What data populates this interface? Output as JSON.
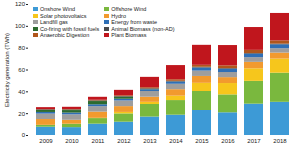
{
  "chart_data": {
    "type": "bar",
    "stacked": true,
    "legend": "upper left",
    "grid": false,
    "y_label": "Electricity generation (TWh)",
    "categories": [
      "2009",
      "2010",
      "2011",
      "2012",
      "2013",
      "2014",
      "2015",
      "2016",
      "2017",
      "2018"
    ],
    "ylim": [
      0,
      120
    ],
    "yticks": [
      0,
      20,
      40,
      60,
      80,
      100,
      120
    ],
    "series": [
      {
        "name": "Onshore Wind",
        "color": "#3d9ad6",
        "values": [
          7.6,
          7.2,
          10.4,
          12.2,
          16.9,
          18.6,
          22.9,
          20.8,
          28.7,
          30.4
        ]
      },
      {
        "name": "Offshore Wind",
        "color": "#7ab83e",
        "values": [
          1.7,
          3.1,
          5.1,
          7.6,
          11.5,
          13.4,
          17.4,
          16.4,
          20.9,
          26.7
        ]
      },
      {
        "name": "Solar photovoltaics",
        "color": "#f6c61c",
        "values": [
          0.02,
          0.04,
          0.24,
          1.35,
          2.0,
          4.05,
          7.5,
          10.4,
          11.5,
          12.9
        ]
      },
      {
        "name": "Hydro",
        "color": "#f29a2e",
        "values": [
          5.3,
          3.6,
          5.7,
          5.3,
          4.7,
          5.9,
          6.3,
          5.4,
          5.9,
          5.5
        ]
      },
      {
        "name": "Landfill gas",
        "color": "#9e9e9e",
        "values": [
          5.0,
          5.0,
          5.0,
          5.2,
          5.2,
          5.0,
          4.9,
          4.7,
          4.3,
          4.0
        ]
      },
      {
        "name": "Energy from waste",
        "color": "#2f6fb5",
        "values": [
          1.5,
          1.6,
          1.7,
          1.6,
          1.6,
          2.0,
          2.8,
          3.0,
          3.2,
          3.6
        ]
      },
      {
        "name": "Co-firing with fossil fuels",
        "color": "#2c6b2f",
        "values": [
          1.8,
          2.3,
          2.96,
          1.8,
          0.26,
          0.1,
          0.1,
          0,
          0,
          0
        ]
      },
      {
        "name": "Animal Biomass (non-AD)",
        "color": "#4a4a4a",
        "values": [
          0.6,
          0.6,
          0.6,
          0.6,
          0.6,
          0.6,
          0.6,
          0.6,
          0.6,
          0.6
        ]
      },
      {
        "name": "Anaerobic Digestion",
        "color": "#b0561b",
        "values": [
          0.2,
          0.4,
          0.6,
          0.7,
          1.0,
          1.4,
          1.8,
          2.5,
          2.9,
          3.0
        ]
      },
      {
        "name": "Plant Biomass",
        "color": "#c0161d",
        "values": [
          1.8,
          2.0,
          2.7,
          5.0,
          9.5,
          13.0,
          18.3,
          18.6,
          20.9,
          25.1
        ]
      }
    ]
  }
}
